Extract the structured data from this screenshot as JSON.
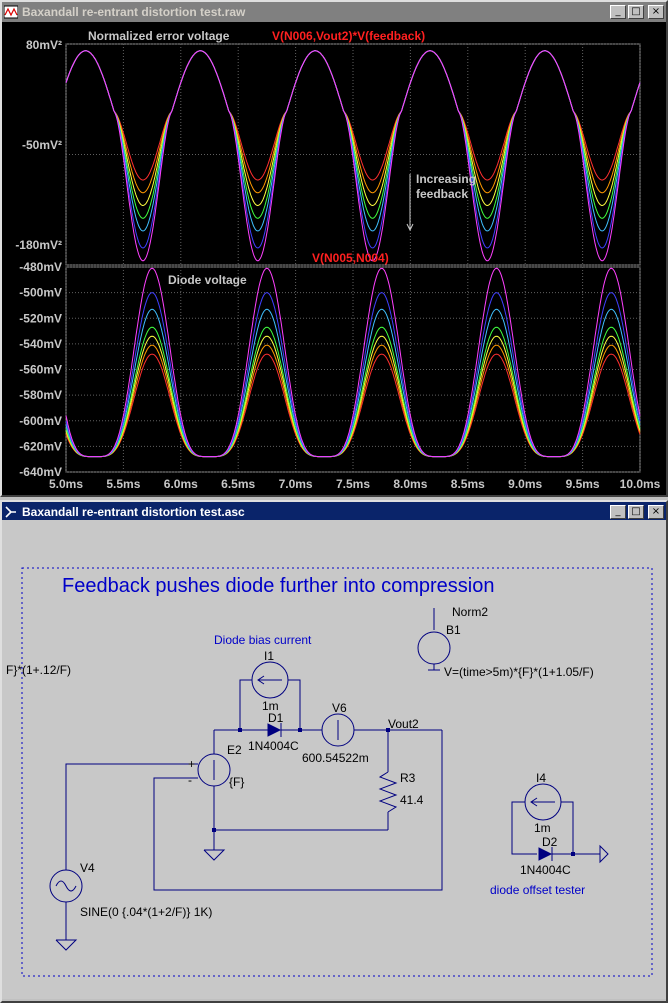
{
  "waveform_window": {
    "title": "Baxandall re-entrant distortion test.raw",
    "buttons": {
      "minimize": "_",
      "maximize": "□",
      "close": "×"
    }
  },
  "plot_top": {
    "annotation_title": "Normalized error voltage",
    "trace_expr": "V(N006,Vout2)*V(feedback)",
    "y_ticks": [
      "80mV²",
      "-50mV²",
      "-180mV²"
    ],
    "note_line1": "Increasing",
    "note_line2": "feedback"
  },
  "plot_bottom": {
    "annotation_title": "Diode voltage",
    "trace_expr": "V(N005,N004)",
    "y_ticks": [
      "-480mV",
      "-500mV",
      "-520mV",
      "-540mV",
      "-560mV",
      "-580mV",
      "-600mV",
      "-620mV",
      "-640mV"
    ]
  },
  "x_ticks": [
    "5.0ms",
    "5.5ms",
    "6.0ms",
    "6.5ms",
    "7.0ms",
    "7.5ms",
    "8.0ms",
    "8.5ms",
    "9.0ms",
    "9.5ms",
    "10.0ms"
  ],
  "trace_colors": [
    "#ff3030",
    "#ff9900",
    "#ffff40",
    "#40ff40",
    "#40c0ff",
    "#4040ff",
    "#ff40ff"
  ],
  "chart_data": [
    {
      "type": "line",
      "title": "Normalized error voltage",
      "trace": "V(N006,Vout2)*V(feedback)",
      "x_range_ms": [
        5.0,
        10.0
      ],
      "ylim_mV2": [
        -180,
        80
      ],
      "frequency_hz": 1000,
      "series_peak_mV2": 72,
      "series_trough_mV2": [
        -80,
        -95,
        -110,
        -125,
        -140,
        -160,
        -175
      ]
    },
    {
      "type": "line",
      "title": "Diode voltage",
      "trace": "V(N005,N004)",
      "x_range_ms": [
        5.0,
        10.0
      ],
      "ylim_mV": [
        -640,
        -480
      ],
      "frequency_hz": 1000,
      "series_trough_mV": -628,
      "series_peak_mV": [
        -548,
        -541,
        -534,
        -527,
        -513,
        -500,
        -481
      ]
    }
  ],
  "schematic_window": {
    "title": "Baxandall re-entrant distortion test.asc",
    "buttons": {
      "minimize": "_",
      "maximize": "□",
      "close": "×"
    },
    "heading": "Feedback pushes diode further into compression",
    "labels": {
      "left_expr": "F}*(1+.12/F)",
      "bias_comment": "Diode bias current",
      "i1_name": "I1",
      "i1_value": "1m",
      "d1_name": "D1",
      "d1_model": "1N4004C",
      "v6_name": "V6",
      "v6_value": "600.54522m",
      "vout_label": "Vout2",
      "e2_name": "E2",
      "e2_value": "{F}",
      "r3_name": "R3",
      "r3_value": "41.4",
      "v4_name": "V4",
      "v4_value": "SINE(0 {.04*(1+2/F)} 1K)",
      "b1_name": "B1",
      "b1_net": "Norm2",
      "b1_value": "V=(time>5m)*{F}*(1+1.05/F)",
      "i4_name": "I4",
      "i4_value": "1m",
      "d2_name": "D2",
      "d2_model": "1N4004C",
      "tester_comment": "diode offset tester",
      "plus": "+",
      "minus": "-"
    }
  }
}
